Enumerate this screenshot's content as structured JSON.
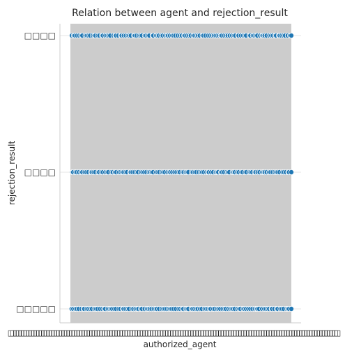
{
  "chart_data": {
    "type": "scatter",
    "title": "Relation between agent and rejection_result",
    "xlabel": "authorized_agent",
    "ylabel": "rejection_result",
    "y_categories": [
      "□□□□",
      "□□□□",
      "□□□□□"
    ],
    "x_tick_glyph": "□",
    "x_tick_count": 130,
    "points_per_category": 118,
    "grid": true,
    "legend": "none",
    "colors": {
      "points": "#1f77b4",
      "point_edge": "#ffffff",
      "band": "#cccccc",
      "grid": "#e6e6e6",
      "spine": "#cccccc",
      "text": "#262626"
    }
  }
}
